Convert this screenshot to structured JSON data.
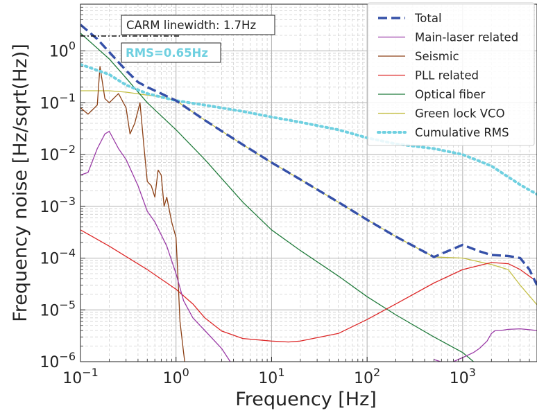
{
  "chart_data": {
    "type": "line",
    "xscale": "log",
    "yscale": "log",
    "xlim": [
      0.1,
      6000
    ],
    "ylim": [
      1e-06,
      8
    ],
    "grid": true,
    "xlabel": "Frequency [Hz]",
    "ylabel": "Frequency noise [Hz/sqrt(Hz)]",
    "x_ticks": [
      "10^-1",
      "10^0",
      "10^1",
      "10^2",
      "10^3"
    ],
    "y_ticks": [
      "10^-6",
      "10^-5",
      "10^-4",
      "10^-3",
      "10^-2",
      "10^-1",
      "10^0"
    ],
    "legend_position": "top-right",
    "annotations": {
      "linewidth": "CARM linewidth: 1.7Hz",
      "rms": "RMS=0.65Hz"
    },
    "series": [
      {
        "name": "Total",
        "color": "#3550a8",
        "style": "dashed",
        "x": [
          0.1,
          0.15,
          0.2,
          0.3,
          0.4,
          0.5,
          0.7,
          1,
          2,
          5,
          10,
          20,
          50,
          100,
          200,
          500,
          1000,
          1500,
          2000,
          3000,
          4000,
          5000,
          6000
        ],
        "y": [
          3.2,
          1.7,
          0.95,
          0.42,
          0.25,
          0.2,
          0.15,
          0.11,
          0.046,
          0.0155,
          0.007,
          0.0033,
          0.0012,
          0.00055,
          0.00026,
          0.000105,
          0.00018,
          0.000135,
          0.000115,
          0.00011,
          0.0001,
          6e-05,
          3e-05
        ]
      },
      {
        "name": "Main-laser related",
        "color": "#9a3ba6",
        "style": "solid",
        "x": [
          0.1,
          0.12,
          0.15,
          0.18,
          0.2,
          0.25,
          0.3,
          0.4,
          0.5,
          0.6,
          0.8,
          1,
          1.2,
          1.5,
          2,
          3,
          4
        ],
        "y": [
          0.004,
          0.0045,
          0.013,
          0.025,
          0.028,
          0.013,
          0.008,
          0.0025,
          0.0008,
          0.0005,
          0.00017,
          5e-05,
          1.5e-05,
          7e-06,
          4e-06,
          1.8e-06,
          8e-07
        ],
        "x2": [
          500,
          700,
          1000,
          1300,
          1500,
          1800,
          2000,
          2200,
          2500,
          3000,
          4000,
          6000
        ],
        "y2": [
          1.1e-06,
          9e-07,
          1.2e-06,
          1.5e-06,
          1.8e-06,
          2.5e-06,
          3.5e-06,
          4e-06,
          4e-06,
          4.2e-06,
          4.3e-06,
          4e-06
        ]
      },
      {
        "name": "Seismic",
        "color": "#8b3f14",
        "style": "solid",
        "x": [
          0.1,
          0.12,
          0.15,
          0.16,
          0.18,
          0.2,
          0.25,
          0.3,
          0.33,
          0.37,
          0.42,
          0.46,
          0.5,
          0.55,
          0.6,
          0.65,
          0.7,
          0.75,
          0.8,
          0.9,
          1,
          1.05,
          1.1,
          1.2,
          1.25
        ],
        "y": [
          0.08,
          0.06,
          0.09,
          0.5,
          0.12,
          0.1,
          0.15,
          0.08,
          0.025,
          0.04,
          0.1,
          0.015,
          0.003,
          0.0025,
          0.0015,
          0.005,
          0.004,
          0.001,
          0.0015,
          0.0005,
          0.00025,
          4e-05,
          6e-06,
          1.5e-06,
          8e-07
        ]
      },
      {
        "name": "PLL related",
        "color": "#dd2727",
        "style": "solid",
        "x": [
          0.1,
          0.2,
          0.5,
          1,
          1.5,
          2,
          3,
          5,
          10,
          15,
          20,
          50,
          100,
          200,
          500,
          1000,
          2000,
          3000,
          4000,
          6000
        ],
        "y": [
          0.00035,
          0.00017,
          6e-05,
          2.5e-05,
          1.3e-05,
          7e-06,
          3.9e-06,
          2.8e-06,
          2.5e-06,
          2.4e-06,
          2.5e-06,
          3.5e-06,
          6.5e-06,
          1.3e-05,
          3.3e-05,
          6e-05,
          8.2e-05,
          7.8e-05,
          6e-05,
          3.5e-05
        ]
      },
      {
        "name": "Optical fiber",
        "color": "#1f7a3a",
        "style": "solid",
        "x": [
          0.1,
          0.2,
          0.3,
          0.5,
          1,
          2,
          5,
          10,
          20,
          50,
          100,
          200,
          500,
          1000,
          1300
        ],
        "y": [
          2.2,
          0.7,
          0.3,
          0.1,
          0.03,
          0.008,
          0.0012,
          0.00035,
          0.00014,
          4.5e-05,
          1.8e-05,
          8e-06,
          3e-06,
          1.5e-06,
          1e-06
        ]
      },
      {
        "name": "Green lock VCO",
        "color": "#c4bf45",
        "style": "solid",
        "x": [
          0.1,
          0.2,
          0.3,
          0.5,
          0.7,
          1,
          2,
          5,
          10,
          20,
          50,
          100,
          200,
          500,
          1000,
          2000,
          3000,
          4000,
          6000
        ],
        "y": [
          0.17,
          0.17,
          0.16,
          0.14,
          0.13,
          0.11,
          0.046,
          0.0155,
          0.007,
          0.0033,
          0.0012,
          0.00055,
          0.00026,
          0.000105,
          0.0001,
          7.5e-05,
          6e-05,
          3e-05,
          1.25e-05
        ]
      },
      {
        "name": "Cumulative RMS",
        "color": "#6fd0e0",
        "style": "dotted",
        "x": [
          0.1,
          0.2,
          0.3,
          0.5,
          1,
          2,
          5,
          10,
          20,
          50,
          100,
          200,
          500,
          1000,
          2000,
          4000,
          6000
        ],
        "y": [
          0.55,
          0.35,
          0.22,
          0.15,
          0.11,
          0.09,
          0.068,
          0.053,
          0.042,
          0.03,
          0.021,
          0.016,
          0.013,
          0.01,
          0.006,
          0.0026,
          0.0017
        ]
      }
    ]
  }
}
